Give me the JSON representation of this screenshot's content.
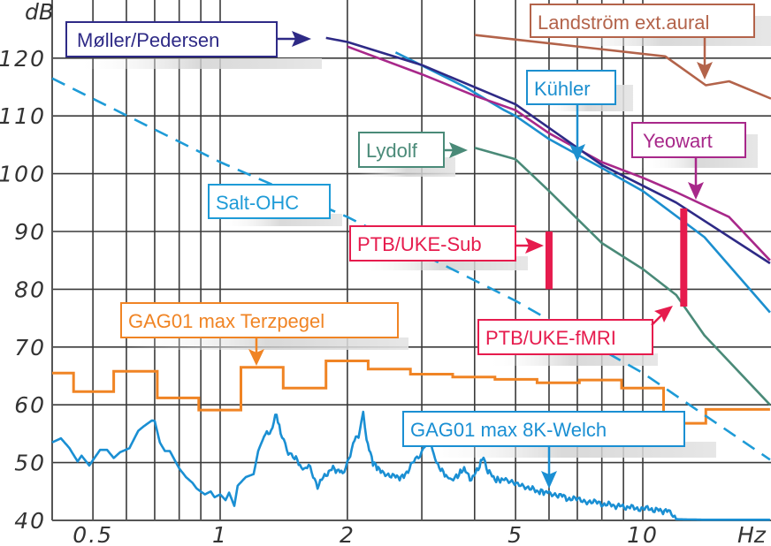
{
  "chart_data": {
    "type": "line",
    "title": "",
    "xlabel": "Hz",
    "ylabel": "dB",
    "xscale": "log",
    "xlim": [
      0.4,
      20
    ],
    "ylim": [
      40,
      128
    ],
    "grid": true,
    "x_ticks": [
      {
        "value": 0.5,
        "label": "0.5"
      },
      {
        "value": 1,
        "label": "1"
      },
      {
        "value": 2,
        "label": "2"
      },
      {
        "value": 5,
        "label": "5"
      },
      {
        "value": 10,
        "label": "10"
      }
    ],
    "x_minor_grid": [
      0.5,
      0.6,
      0.7,
      0.8,
      0.9,
      1,
      2,
      3,
      4,
      5,
      6,
      7,
      8,
      9,
      10
    ],
    "y_ticks": [
      40,
      50,
      60,
      70,
      80,
      90,
      100,
      110,
      120
    ],
    "series": [
      {
        "name": "Møller/Pedersen",
        "color": "#2e2a86",
        "style": "solid",
        "points": [
          [
            1.78,
            123.5
          ],
          [
            2,
            122.8
          ],
          [
            3,
            118.8
          ],
          [
            5,
            112
          ],
          [
            8,
            101.5
          ],
          [
            12,
            95
          ],
          [
            20,
            84.5
          ]
        ]
      },
      {
        "name": "Landström ext.aural",
        "color": "#b3634a",
        "style": "solid",
        "points": [
          [
            4,
            124
          ],
          [
            11.3,
            120.3
          ],
          [
            14.1,
            115.3
          ],
          [
            16,
            116
          ],
          [
            20.5,
            113
          ],
          [
            22,
            113
          ]
        ]
      },
      {
        "name": "Kühler",
        "color": "#1c8fcf",
        "style": "solid",
        "points": [
          [
            2.6,
            121
          ],
          [
            3.8,
            115
          ],
          [
            4.7,
            111
          ],
          [
            5,
            110
          ],
          [
            6,
            106
          ],
          [
            8,
            101
          ],
          [
            10,
            97
          ],
          [
            14,
            89
          ],
          [
            20,
            76
          ]
        ]
      },
      {
        "name": "Yeowart",
        "color": "#a8288a",
        "style": "solid",
        "points": [
          [
            2,
            122
          ],
          [
            3,
            117.2
          ],
          [
            4,
            113.5
          ],
          [
            5,
            111
          ],
          [
            6,
            107
          ],
          [
            8,
            102
          ],
          [
            10,
            99.3
          ],
          [
            12,
            96.8
          ],
          [
            16,
            92.5
          ],
          [
            20,
            85
          ]
        ]
      },
      {
        "name": "Lydolf",
        "color": "#4a8a78",
        "style": "solid",
        "points": [
          [
            4,
            104.5
          ],
          [
            5,
            102.5
          ],
          [
            6,
            97
          ],
          [
            8,
            88
          ],
          [
            10,
            83.5
          ],
          [
            12,
            79
          ],
          [
            14,
            72
          ],
          [
            20,
            60
          ]
        ]
      },
      {
        "name": "Salt-OHC",
        "color": "#1e9bd7",
        "style": "dashed",
        "points": [
          [
            0.4,
            116.5
          ],
          [
            1,
            102
          ],
          [
            2,
            92.5
          ],
          [
            5,
            78
          ],
          [
            10,
            65.5
          ],
          [
            20,
            50.5
          ]
        ]
      },
      {
        "name": "PTB/UKE-Sub",
        "color": "#e61b4d",
        "style": "range-bar",
        "points": [
          [
            6,
            80
          ],
          [
            6,
            90
          ]
        ]
      },
      {
        "name": "PTB/UKE-fMRI",
        "color": "#e61b4d",
        "style": "range-bar",
        "points": [
          [
            12.5,
            77
          ],
          [
            12.5,
            94
          ]
        ]
      },
      {
        "name": "GAG01 max Terzpegel",
        "color": "#f08424",
        "style": "step",
        "bands": [
          {
            "f_lo": 0.4,
            "f_hi": 0.45,
            "db": 65.5
          },
          {
            "f_lo": 0.45,
            "f_hi": 0.56,
            "db": 62.3
          },
          {
            "f_lo": 0.56,
            "f_hi": 0.71,
            "db": 65.8
          },
          {
            "f_lo": 0.71,
            "f_hi": 0.89,
            "db": 61.2
          },
          {
            "f_lo": 0.89,
            "f_hi": 1.12,
            "db": 59.1
          },
          {
            "f_lo": 1.12,
            "f_hi": 1.41,
            "db": 66.5
          },
          {
            "f_lo": 1.41,
            "f_hi": 1.78,
            "db": 62.9
          },
          {
            "f_lo": 1.78,
            "f_hi": 2.24,
            "db": 67.6
          },
          {
            "f_lo": 2.24,
            "f_hi": 2.82,
            "db": 66.2
          },
          {
            "f_lo": 2.82,
            "f_hi": 3.55,
            "db": 65.3
          },
          {
            "f_lo": 3.55,
            "f_hi": 4.47,
            "db": 64.8
          },
          {
            "f_lo": 4.47,
            "f_hi": 5.62,
            "db": 64.4
          },
          {
            "f_lo": 5.62,
            "f_hi": 7.08,
            "db": 63.8
          },
          {
            "f_lo": 7.08,
            "f_hi": 8.91,
            "db": 64.3
          },
          {
            "f_lo": 8.91,
            "f_hi": 11.2,
            "db": 62.9
          },
          {
            "f_lo": 11.2,
            "f_hi": 14.1,
            "db": 56.8
          },
          {
            "f_lo": 14.1,
            "f_hi": 20,
            "db": 59.2
          }
        ]
      },
      {
        "name": "GAG01 max 8K-Welch",
        "color": "#1a8fd3",
        "style": "solid-noisy",
        "points": [
          [
            0.4,
            53.5
          ],
          [
            0.42,
            54.2
          ],
          [
            0.44,
            52.5
          ],
          [
            0.46,
            50.2
          ],
          [
            0.47,
            51.2
          ],
          [
            0.49,
            49.5
          ],
          [
            0.52,
            52.2
          ],
          [
            0.54,
            52.2
          ],
          [
            0.56,
            50.8
          ],
          [
            0.58,
            51.8
          ],
          [
            0.61,
            52.5
          ],
          [
            0.64,
            55.5
          ],
          [
            0.66,
            56.3
          ],
          [
            0.69,
            57.3
          ],
          [
            0.7,
            57.2
          ],
          [
            0.72,
            53.5
          ],
          [
            0.74,
            52
          ],
          [
            0.76,
            52
          ],
          [
            0.8,
            49
          ],
          [
            0.83,
            47.5
          ],
          [
            0.86,
            46.5
          ],
          [
            0.88,
            45.5
          ],
          [
            0.92,
            44.5
          ],
          [
            0.95,
            45
          ],
          [
            0.97,
            44
          ],
          [
            1.0,
            44.5
          ],
          [
            1.03,
            43.5
          ],
          [
            1.05,
            44.8
          ],
          [
            1.08,
            42.5
          ],
          [
            1.1,
            46
          ],
          [
            1.15,
            47.5
          ],
          [
            1.2,
            48
          ],
          [
            1.23,
            52
          ],
          [
            1.27,
            54.5
          ],
          [
            1.32,
            55.5
          ],
          [
            1.36,
            58.5
          ],
          [
            1.39,
            55
          ],
          [
            1.45,
            51.5
          ],
          [
            1.5,
            51
          ],
          [
            1.58,
            48.5
          ],
          [
            1.62,
            49.5
          ],
          [
            1.7,
            46
          ],
          [
            1.78,
            48
          ],
          [
            1.85,
            49
          ],
          [
            1.95,
            48.2
          ],
          [
            2.0,
            50
          ],
          [
            2.08,
            54
          ],
          [
            2.14,
            55
          ],
          [
            2.18,
            59
          ],
          [
            2.22,
            54
          ],
          [
            2.3,
            50
          ],
          [
            2.4,
            48.5
          ],
          [
            2.5,
            48
          ],
          [
            2.6,
            47.5
          ],
          [
            2.72,
            47.5
          ],
          [
            2.85,
            50
          ],
          [
            2.97,
            51
          ],
          [
            3.05,
            53
          ],
          [
            3.1,
            56.5
          ],
          [
            3.2,
            51
          ],
          [
            3.35,
            48.5
          ],
          [
            3.5,
            47
          ],
          [
            3.62,
            47.5
          ],
          [
            3.78,
            49
          ],
          [
            3.9,
            47
          ],
          [
            4.05,
            48.5
          ],
          [
            4.2,
            51
          ],
          [
            4.3,
            48.5
          ],
          [
            4.5,
            47
          ],
          [
            4.7,
            47
          ],
          [
            4.9,
            46.5
          ],
          [
            5.1,
            46.5
          ],
          [
            5.4,
            45.5
          ],
          [
            5.7,
            45
          ],
          [
            6.0,
            44.8
          ],
          [
            6.3,
            44.5
          ],
          [
            6.7,
            43.7
          ],
          [
            7.2,
            43.5
          ],
          [
            7.8,
            43
          ],
          [
            8.5,
            42.6
          ],
          [
            9.4,
            42.2
          ],
          [
            10.5,
            41.9
          ],
          [
            11.6,
            41.5
          ],
          [
            12.0,
            40.2
          ],
          [
            14,
            40.1
          ],
          [
            20,
            40.1
          ]
        ]
      }
    ],
    "annotations": [
      {
        "text": "Møller/Pedersen",
        "target_series": "Møller/Pedersen"
      },
      {
        "text": "Landström ext.aural",
        "target_series": "Landström ext.aural"
      },
      {
        "text": "Kühler",
        "target_series": "Kühler"
      },
      {
        "text": "Lydolf",
        "target_series": "Lydolf"
      },
      {
        "text": "Yeowart",
        "target_series": "Yeowart"
      },
      {
        "text": "Salt-OHC",
        "target_series": "Salt-OHC"
      },
      {
        "text": "PTB/UKE-Sub",
        "target_series": "PTB/UKE-Sub"
      },
      {
        "text": "GAG01 max Terzpegel",
        "target_series": "GAG01 max Terzpegel"
      },
      {
        "text": "PTB/UKE-fMRI",
        "target_series": "PTB/UKE-fMRI"
      },
      {
        "text": "GAG01 max 8K-Welch",
        "target_series": "GAG01 max 8K-Welch"
      }
    ],
    "legend": "callout-labels"
  },
  "labels": {
    "y_unit": "dB",
    "x_unit": "Hz",
    "moller": "Møller/Pedersen",
    "landstrom": "Landström ext.aural",
    "kuhler": "Kühler",
    "lydolf": "Lydolf",
    "yeowart": "Yeowart",
    "salt": "Salt-OHC",
    "ptb_sub": "PTB/UKE-Sub",
    "terz": "GAG01 max Terzpegel",
    "ptb_fmri": "PTB/UKE-fMRI",
    "welch": "GAG01 max 8K-Welch"
  }
}
